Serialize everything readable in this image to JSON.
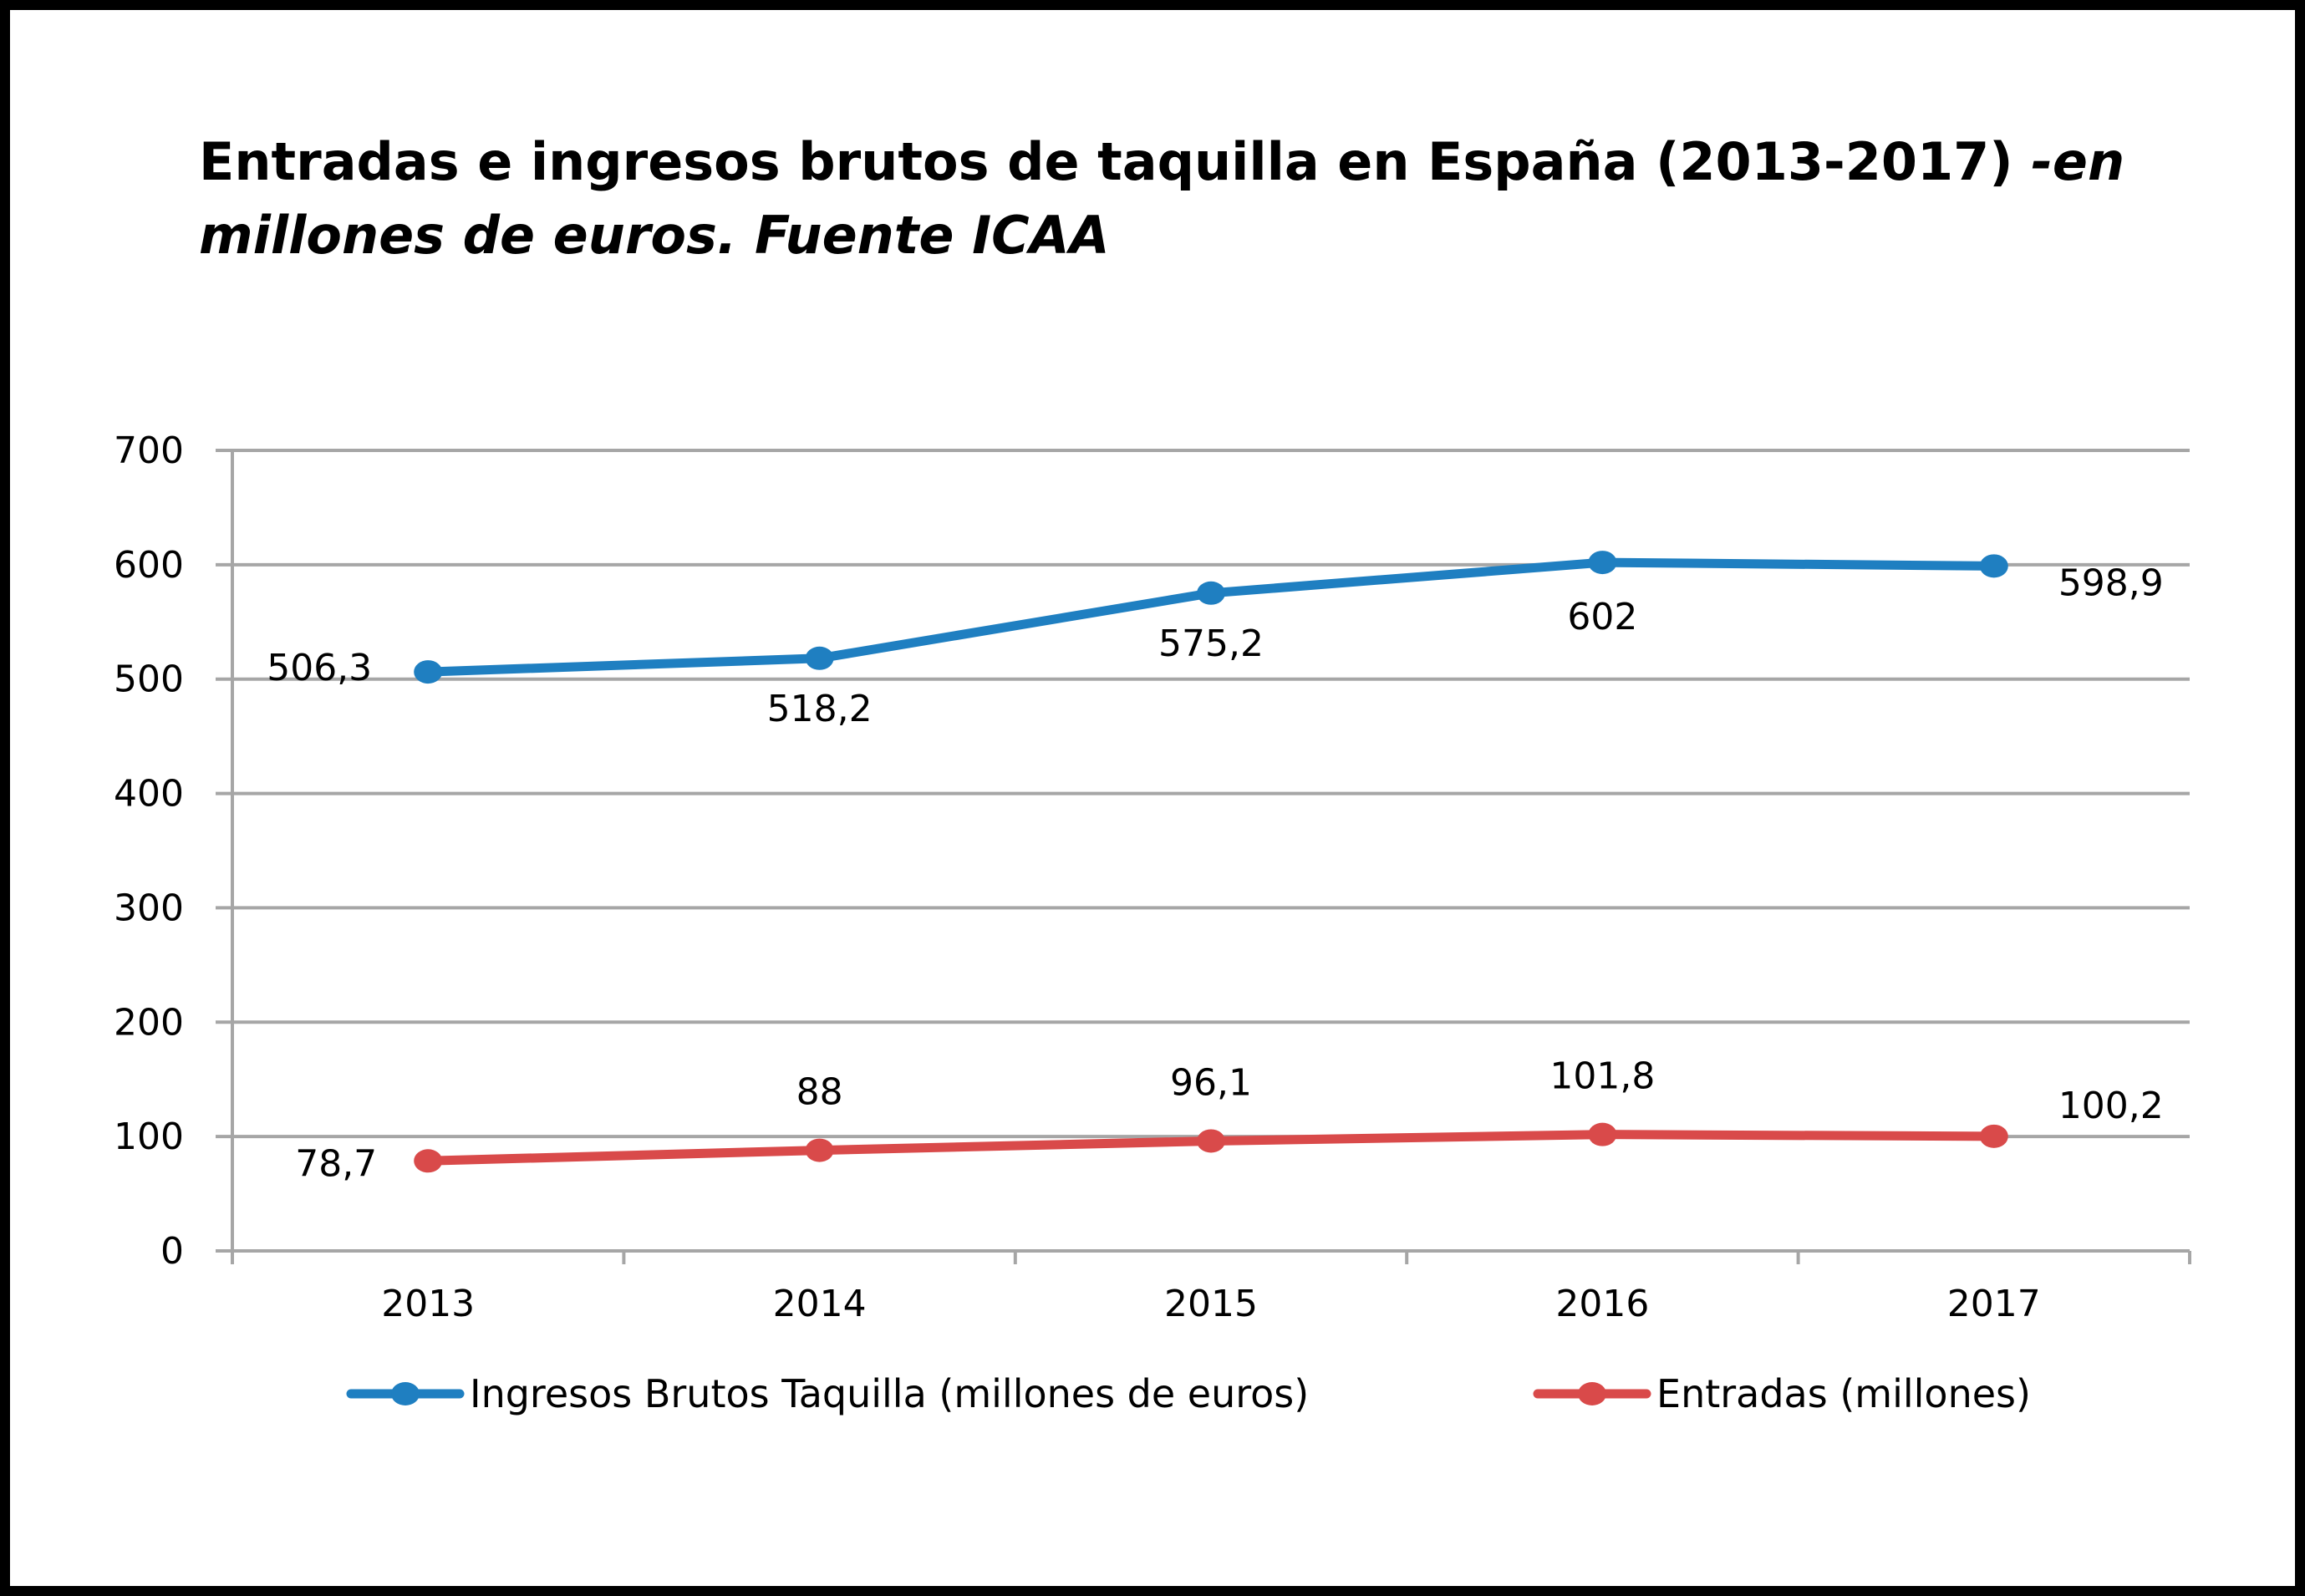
{
  "title": {
    "main": "Entradas e ingresos brutos de taquilla en España (2013-2017) ",
    "sub": "-en millones de euros. Fuente ICAA"
  },
  "chart_data": {
    "type": "line",
    "title": "Entradas e ingresos brutos de taquilla en España (2013-2017) -en millones de euros. Fuente ICAA",
    "categories": [
      "2013",
      "2014",
      "2015",
      "2016",
      "2017"
    ],
    "yticks": [
      "0",
      "100",
      "200",
      "300",
      "400",
      "500",
      "600",
      "700"
    ],
    "ylim": [
      0,
      700
    ],
    "grid": true,
    "legend_position": "bottom",
    "series": [
      {
        "name": "Ingresos Brutos Taquilla (millones de euros)",
        "color": "#1f7fc1",
        "values": [
          506.3,
          518.2,
          575.2,
          602,
          598.9
        ],
        "labels": [
          "506,3",
          "518,2",
          "575,2",
          "602",
          "598,9"
        ]
      },
      {
        "name": "Entradas (millones)",
        "color": "#d94a4a",
        "values": [
          78.7,
          88,
          96.1,
          101.8,
          100.2
        ],
        "labels": [
          "78,7",
          "88",
          "96,1",
          "101,8",
          "100,2"
        ]
      }
    ]
  }
}
